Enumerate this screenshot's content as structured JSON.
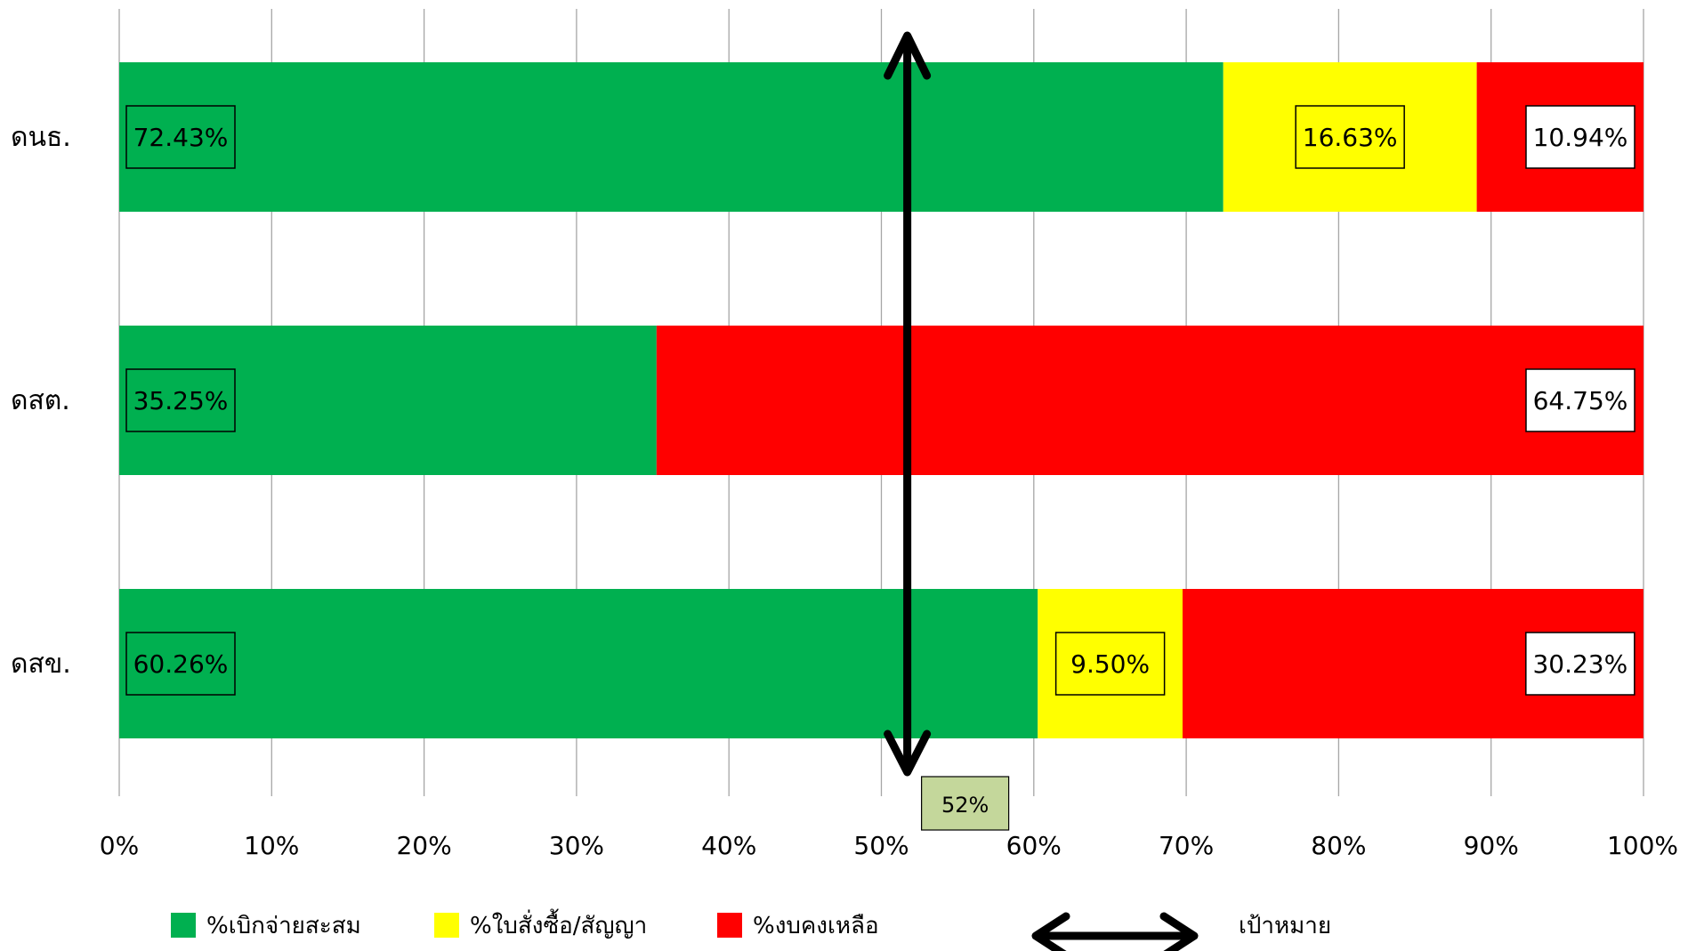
{
  "chart_data": {
    "type": "bar",
    "orientation": "horizontal",
    "stacked": true,
    "categories": [
      "ดนธ.",
      "ดสต.",
      "ดสข."
    ],
    "series": [
      {
        "name": "%เบิกจ่ายสะสม",
        "color": "#00B050",
        "values": [
          72.43,
          35.25,
          60.26
        ],
        "labels": [
          "72.43%",
          "35.25%",
          "60.26%"
        ]
      },
      {
        "name": "%ใบสั่งซื้อ/สัญญา",
        "color": "#FFFF00",
        "values": [
          16.63,
          0,
          9.5
        ],
        "labels": [
          "16.63%",
          "",
          "9.50%"
        ]
      },
      {
        "name": "%งบคงเหลือ",
        "color": "#FF0000",
        "values": [
          10.94,
          64.75,
          30.23
        ],
        "labels": [
          "10.94%",
          "64.75%",
          "30.23%"
        ]
      }
    ],
    "xlim": [
      0,
      100
    ],
    "x_ticks": [
      "0%",
      "10%",
      "20%",
      "30%",
      "40%",
      "50%",
      "60%",
      "70%",
      "80%",
      "90%",
      "100%"
    ],
    "grid": true,
    "target": {
      "value": 51.7,
      "label": "52%",
      "legend_label": "เป้าหมาย"
    },
    "legend_position": "bottom"
  }
}
